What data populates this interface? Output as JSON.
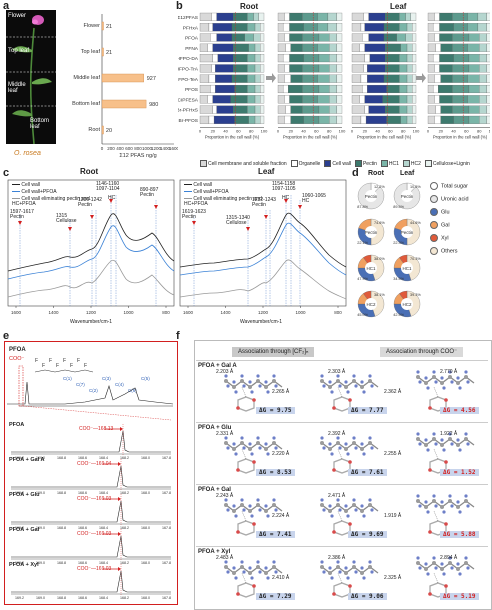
{
  "panel_labels": {
    "a": "a",
    "b": "b",
    "c": "c",
    "d": "d",
    "e": "e",
    "f": "f"
  },
  "panel_a": {
    "plant_labels": [
      "Flower",
      "Top leaf",
      "Middle leaf",
      "Bottom leaf"
    ],
    "species": "O. rosea",
    "chart_data": {
      "type": "bar",
      "categories": [
        "Flower",
        "Top leaf",
        "Middle leaf",
        "Bottom leaf",
        "Root"
      ],
      "values": [
        21,
        21,
        927,
        980,
        20
      ],
      "data_labels": [
        "21",
        "21",
        "927",
        "980",
        "20"
      ],
      "xlabel": "Σ12 PFAS ng/g",
      "xticks": [
        "0",
        "200",
        "400",
        "600",
        "800",
        "1000",
        "1200",
        "1400",
        "1600"
      ],
      "xlim": [
        0,
        1600
      ]
    }
  },
  "panel_b": {
    "titles": [
      "Root",
      "Leaf"
    ],
    "rows": [
      "Σ12PFAS",
      "PFHxA",
      "PFOA",
      "PFNA",
      "HFPO-DA",
      "HFPO-TrA",
      "HFPO-TeA",
      "PFOS",
      "6:2 CIPFESA",
      "Br-PFHxS",
      "Br-PFOS"
    ],
    "xlabel": "Proportion in the cell wall (%)",
    "xticks": [
      "0",
      "20",
      "40",
      "60",
      "80",
      "100"
    ],
    "legend": [
      "Cell membrane and soluble fraction",
      "Organelle",
      "Cell wall",
      "Pectin",
      "HC1",
      "HC2",
      "Cellulose+Lignin"
    ],
    "colors": [
      "#d9d9d9",
      "#ffffff",
      "#2b3f8f",
      "#3d7a6e",
      "#7ab5a8",
      "#b5d6cf",
      "#e8f2ef"
    ]
  },
  "panel_c": {
    "titles": [
      "Root",
      "Leaf"
    ],
    "legend_root": [
      "Cell wall",
      "Cell wall+PFOA",
      "Cell wall eliminating pectin and HC+PFOA"
    ],
    "legend_leaf": [
      "Cell wall",
      "Cell wall+PFOA",
      "Cell wall eliminating pectin and HC+PFOA"
    ],
    "xlabel": "Wavenumber/cm-1",
    "xticks_root": [
      "1600",
      "1400",
      "1200",
      "1000",
      "800"
    ],
    "xticks_leaf": [
      "1600",
      "1400",
      "1200",
      "1000",
      "800"
    ],
    "root_annotations": [
      "1597-1617 Pectin",
      "1315 Cellulose",
      "1230-1242 Pectin",
      "1146-1160 1097-1104",
      "HC",
      "890-897 Pectin"
    ],
    "leaf_annotations": [
      "1619-1623 Pectin",
      "1315-1340 Cellulose",
      "1232-1243 Pectin",
      "1154-1158 1097-1105",
      "HC",
      "1060-1065 HC"
    ]
  },
  "panel_d": {
    "titles": [
      "Root",
      "Leaf"
    ],
    "legend": [
      "Total sugar",
      "Uronic acid",
      "Glu",
      "Gal",
      "Xyl",
      "Others"
    ],
    "legend_colors": [
      "#ffffff",
      "#e6e6e6",
      "#4a6fb5",
      "#f0a060",
      "#e05a3a",
      "#f3e7d3"
    ],
    "donuts": [
      {
        "label": "Pectin",
        "v1": "12.2%",
        "v2": "87.8%"
      },
      {
        "label": "Pectin",
        "v1": "10.5%",
        "v2": "89.5%"
      },
      {
        "label": "Pectin",
        "v1": "74.6%",
        "v2": "22.1%"
      },
      {
        "label": "Pectin",
        "v1": "44.6%",
        "v2": "22.3%"
      },
      {
        "label": "HC1",
        "v1": "38.0%",
        "v2": "47.9%"
      },
      {
        "label": "HC1",
        "v1": "70.3%",
        "v2": "34.5%"
      },
      {
        "label": "HC2",
        "v1": "38.1%",
        "v2": "45.0%"
      },
      {
        "label": "HC2",
        "v1": "39.3%",
        "v2": "42.5%"
      }
    ]
  },
  "panel_e": {
    "spectrum_title": "PFOA",
    "cf_labels": [
      "F",
      "F",
      "F",
      "F",
      "F",
      "F",
      "F",
      "F"
    ],
    "coo": "COO⁻",
    "peaks": [
      "C(1)",
      "C(7)",
      "C(2)",
      "C(3)",
      "C(4)",
      "C(6)",
      "C(5)"
    ],
    "rows": [
      {
        "name": "PFOA",
        "shift": "168.13"
      },
      {
        "name": "PFOA + Gal A",
        "shift": "169.04"
      },
      {
        "name": "PFOA + Glu",
        "shift": "169.03"
      },
      {
        "name": "PFOA + Gal",
        "shift": "169.03"
      },
      {
        "name": "PFOA + Xyl",
        "shift": "169.03"
      }
    ],
    "xticks": [
      "169.2",
      "169.0",
      "168.8",
      "168.6",
      "168.4",
      "168.2",
      "168.0",
      "167.8"
    ]
  },
  "panel_f": {
    "header_left": "Association through [CF₂]ₙ",
    "header_right": "Association through COO⁻",
    "rows": [
      {
        "name": "PFOA + Gal A",
        "dists": [
          "2.203 Å",
          "2.265 Å",
          "2.303 Å",
          "2.362 Å",
          "2.770 Å"
        ],
        "dg": [
          "ΔG = 9.75",
          "ΔG = 7.77",
          "ΔG = 4.56"
        ]
      },
      {
        "name": "PFOA + Glu",
        "dists": [
          "2.331 Å",
          "2.220 Å",
          "2.392 Å",
          "2.255 Å",
          "1.922 Å"
        ],
        "dg": [
          "ΔG = 8.53",
          "ΔG = 7.61",
          "ΔG = 1.52"
        ]
      },
      {
        "name": "PFOA + Gal",
        "dists": [
          "2.243 Å",
          "2.224 Å",
          "2.471 Å",
          "1.919 Å"
        ],
        "dg": [
          "ΔG = 7.41",
          "ΔG = 9.69",
          "ΔG = 5.88"
        ]
      },
      {
        "name": "PFOA + Xyl",
        "dists": [
          "2.483 Å",
          "2.410 Å",
          "2.386 Å",
          "2.325 Å",
          "2.894 Å"
        ],
        "dg": [
          "ΔG = 7.29",
          "ΔG = 9.06",
          "ΔG = 5.19"
        ]
      }
    ]
  }
}
